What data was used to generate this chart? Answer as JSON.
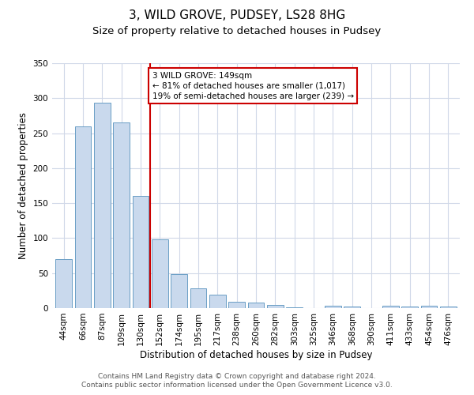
{
  "title": "3, WILD GROVE, PUDSEY, LS28 8HG",
  "subtitle": "Size of property relative to detached houses in Pudsey",
  "xlabel": "Distribution of detached houses by size in Pudsey",
  "ylabel": "Number of detached properties",
  "categories": [
    "44sqm",
    "66sqm",
    "87sqm",
    "109sqm",
    "130sqm",
    "152sqm",
    "174sqm",
    "195sqm",
    "217sqm",
    "238sqm",
    "260sqm",
    "282sqm",
    "303sqm",
    "325sqm",
    "346sqm",
    "368sqm",
    "390sqm",
    "411sqm",
    "433sqm",
    "454sqm",
    "476sqm"
  ],
  "values": [
    70,
    260,
    293,
    265,
    160,
    98,
    49,
    28,
    19,
    9,
    8,
    5,
    1,
    0,
    3,
    2,
    0,
    3,
    2,
    3,
    2
  ],
  "bar_color": "#c9d9ed",
  "bar_edge_color": "#6a9ec5",
  "vline_x_index": 5,
  "vline_color": "#cc0000",
  "annotation_text": "3 WILD GROVE: 149sqm\n← 81% of detached houses are smaller (1,017)\n19% of semi-detached houses are larger (239) →",
  "annotation_box_color": "#ffffff",
  "annotation_box_edge_color": "#cc0000",
  "ylim": [
    0,
    350
  ],
  "yticks": [
    0,
    50,
    100,
    150,
    200,
    250,
    300,
    350
  ],
  "footer_line1": "Contains HM Land Registry data © Crown copyright and database right 2024.",
  "footer_line2": "Contains public sector information licensed under the Open Government Licence v3.0.",
  "background_color": "#ffffff",
  "grid_color": "#d0d8e8",
  "title_fontsize": 11,
  "subtitle_fontsize": 9.5,
  "axis_label_fontsize": 8.5,
  "tick_fontsize": 7.5,
  "annotation_fontsize": 7.5,
  "footer_fontsize": 6.5
}
